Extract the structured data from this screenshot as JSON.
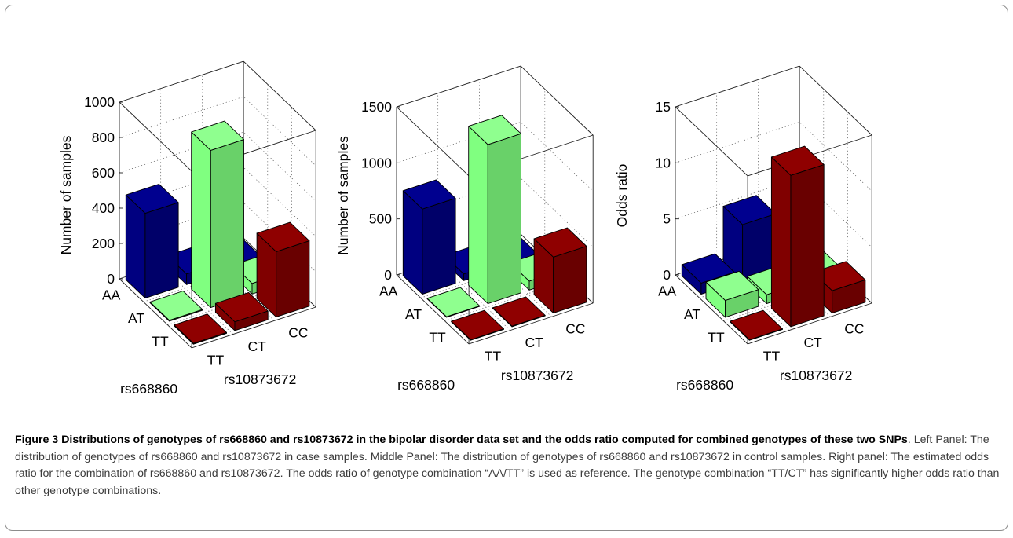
{
  "chart_data": [
    {
      "type": "bar3d",
      "zlabel": "Number of samples",
      "zlim": [
        0,
        1000
      ],
      "zticks": [
        "0",
        "200",
        "400",
        "600",
        "800",
        "1000"
      ],
      "x_axis": {
        "label": "rs668860",
        "categories": [
          "AA",
          "AT",
          "TT"
        ]
      },
      "y_axis": {
        "label": "rs10873672",
        "categories": [
          "TT",
          "CT",
          "CC"
        ]
      },
      "bars": [
        {
          "x": "AA",
          "y": "TT",
          "value": 480,
          "color": "#000080"
        },
        {
          "x": "AA",
          "y": "CT",
          "value": 60,
          "color": "#000080"
        },
        {
          "x": "AA",
          "y": "CC",
          "value": 20,
          "color": "#000080"
        },
        {
          "x": "AT",
          "y": "TT",
          "value": 5,
          "color": "#80ff80"
        },
        {
          "x": "AT",
          "y": "CT",
          "value": 890,
          "color": "#80ff80"
        },
        {
          "x": "AT",
          "y": "CC",
          "value": 60,
          "color": "#80ff80"
        },
        {
          "x": "TT",
          "y": "TT",
          "value": 5,
          "color": "#800000"
        },
        {
          "x": "TT",
          "y": "CT",
          "value": 50,
          "color": "#800000"
        },
        {
          "x": "TT",
          "y": "CC",
          "value": 370,
          "color": "#800000"
        }
      ]
    },
    {
      "type": "bar3d",
      "zlabel": "Number of samples",
      "zlim": [
        0,
        1500
      ],
      "zticks": [
        "0",
        "500",
        "1000",
        "1500"
      ],
      "x_axis": {
        "label": "rs668860",
        "categories": [
          "AA",
          "AT",
          "TT"
        ]
      },
      "y_axis": {
        "label": "rs10873672",
        "categories": [
          "TT",
          "CT",
          "CC"
        ]
      },
      "bars": [
        {
          "x": "AA",
          "y": "TT",
          "value": 760,
          "color": "#000080"
        },
        {
          "x": "AA",
          "y": "CT",
          "value": 60,
          "color": "#000080"
        },
        {
          "x": "AA",
          "y": "CC",
          "value": 15,
          "color": "#000080"
        },
        {
          "x": "AT",
          "y": "TT",
          "value": 5,
          "color": "#80ff80"
        },
        {
          "x": "AT",
          "y": "CT",
          "value": 1420,
          "color": "#80ff80"
        },
        {
          "x": "AT",
          "y": "CC",
          "value": 80,
          "color": "#80ff80"
        },
        {
          "x": "TT",
          "y": "TT",
          "value": 5,
          "color": "#800000"
        },
        {
          "x": "TT",
          "y": "CT",
          "value": 5,
          "color": "#800000"
        },
        {
          "x": "TT",
          "y": "CC",
          "value": 500,
          "color": "#800000"
        }
      ]
    },
    {
      "type": "bar3d",
      "zlabel": "Odds ratio",
      "zlim": [
        0,
        15
      ],
      "zticks": [
        "0",
        "5",
        "10",
        "15"
      ],
      "x_axis": {
        "label": "rs668860",
        "categories": [
          "AA",
          "AT",
          "TT"
        ]
      },
      "y_axis": {
        "label": "rs10873672",
        "categories": [
          "TT",
          "CT",
          "CC"
        ]
      },
      "bars": [
        {
          "x": "AA",
          "y": "TT",
          "value": 1.0,
          "color": "#000080"
        },
        {
          "x": "AA",
          "y": "CT",
          "value": 5.0,
          "color": "#000080"
        },
        {
          "x": "AA",
          "y": "CC",
          "value": 1.5,
          "color": "#000080"
        },
        {
          "x": "AT",
          "y": "TT",
          "value": 1.5,
          "color": "#80ff80"
        },
        {
          "x": "AT",
          "y": "CT",
          "value": 0.8,
          "color": "#80ff80"
        },
        {
          "x": "AT",
          "y": "CC",
          "value": 1.0,
          "color": "#80ff80"
        },
        {
          "x": "TT",
          "y": "TT",
          "value": 0.05,
          "color": "#800000"
        },
        {
          "x": "TT",
          "y": "CT",
          "value": 13.5,
          "color": "#800000"
        },
        {
          "x": "TT",
          "y": "CC",
          "value": 2.0,
          "color": "#800000"
        }
      ]
    }
  ],
  "caption": {
    "title": "Figure 3 Distributions of genotypes of rs668860 and rs10873672 in the bipolar disorder data set and the odds ratio computed for combined genotypes of these two SNPs",
    "body": ". Left Panel: The distribution of genotypes of rs668860 and rs10873672 in case samples. Middle Panel: The distribution of genotypes of rs668860 and rs10873672 in control samples. Right panel: The estimated odds ratio for the combination of rs668860 and rs10873672. The odds ratio of genotype combination “AA/TT” is used as reference. The genotype combination “TT/CT” has significantly higher odds ratio than other genotype combinations."
  }
}
